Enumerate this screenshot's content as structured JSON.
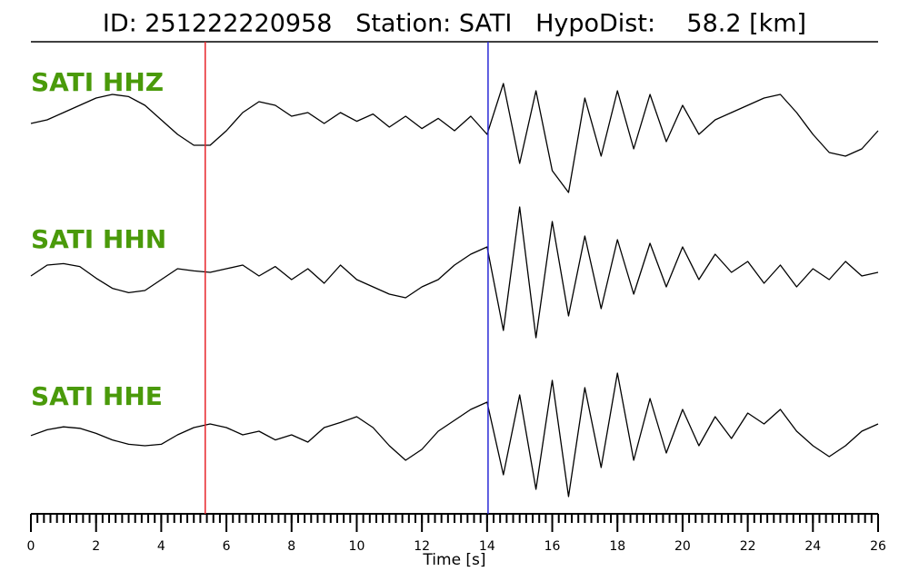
{
  "chart_data": {
    "type": "seismogram",
    "title": "ID: 251222220958   Station: SATI   HypoDist:    58.2 [km]",
    "xlabel": "Time [s]",
    "xlim": [
      0,
      26
    ],
    "xticks": [
      0,
      2,
      4,
      6,
      8,
      10,
      12,
      14,
      16,
      18,
      20,
      22,
      24,
      26
    ],
    "xminorticks": [
      0,
      0.2,
      0.4,
      0.6,
      0.8,
      1,
      1.2,
      1.4,
      1.6,
      1.8,
      2,
      2.2,
      2.4,
      2.6,
      2.8,
      3,
      3.2,
      3.4,
      3.6,
      3.8,
      4,
      4.2,
      4.4,
      4.6,
      4.8,
      5,
      5.2,
      5.4,
      5.6,
      5.8,
      6,
      6.2,
      6.4,
      6.6,
      6.8,
      7,
      7.2,
      7.4,
      7.6,
      7.8,
      8,
      8.2,
      8.4,
      8.6,
      8.8,
      9,
      9.2,
      9.4,
      9.6,
      9.8,
      10,
      10.2,
      10.4,
      10.6,
      10.8,
      11,
      11.2,
      11.4,
      11.6,
      11.8,
      12,
      12.2,
      12.4,
      12.6,
      12.8,
      13,
      13.2,
      13.4,
      13.6,
      13.8,
      14,
      14.2,
      14.4,
      14.6,
      14.8,
      15,
      15.2,
      15.4,
      15.6,
      15.8,
      16,
      16.2,
      16.4,
      16.6,
      16.8,
      17,
      17.2,
      17.4,
      17.6,
      17.8,
      18,
      18.2,
      18.4,
      18.6,
      18.8,
      19,
      19.2,
      19.4,
      19.6,
      19.8,
      20,
      20.2,
      20.4,
      20.6,
      20.8,
      21,
      21.2,
      21.4,
      21.6,
      21.8,
      22,
      22.2,
      22.4,
      22.6,
      22.8,
      23,
      23.2,
      23.4,
      23.6,
      23.8,
      24,
      24.2,
      24.4,
      24.6,
      24.8,
      25,
      25.2,
      25.4,
      25.6,
      25.8,
      26
    ],
    "picks": [
      {
        "value": 5.35,
        "color": "#e8242b"
      },
      {
        "value": 14.03,
        "color": "#2a2ad6"
      }
    ],
    "x": [
      0,
      0.5,
      1,
      1.5,
      2,
      2.5,
      3,
      3.5,
      4,
      4.5,
      5,
      5.5,
      6,
      6.5,
      7,
      7.5,
      8,
      8.5,
      9,
      9.5,
      10,
      10.5,
      11,
      11.5,
      12,
      12.5,
      13,
      13.5,
      14,
      14.5,
      15,
      15.5,
      16,
      16.5,
      17,
      17.5,
      18,
      18.5,
      19,
      19.5,
      20,
      20.5,
      21,
      21.5,
      22,
      22.5,
      23,
      23.5,
      24,
      24.5,
      25,
      25.5,
      26
    ],
    "series": [
      {
        "name": "SATI HHZ",
        "color": "#000000",
        "values": [
          0.05,
          0.1,
          0.2,
          0.3,
          0.4,
          0.45,
          0.42,
          0.3,
          0.1,
          -0.1,
          -0.25,
          -0.25,
          -0.05,
          0.2,
          0.35,
          0.3,
          0.15,
          0.2,
          0.05,
          0.2,
          0.08,
          0.18,
          0.0,
          0.15,
          -0.02,
          0.12,
          -0.05,
          0.15,
          -0.1,
          0.6,
          -0.5,
          0.5,
          -0.6,
          -0.9,
          0.4,
          -0.4,
          0.5,
          -0.3,
          0.45,
          -0.2,
          0.3,
          -0.1,
          0.1,
          0.2,
          0.3,
          0.4,
          0.45,
          0.2,
          -0.1,
          -0.35,
          -0.4,
          -0.3,
          -0.05
        ]
      },
      {
        "name": "SATI HHN",
        "color": "#000000",
        "values": [
          -0.05,
          0.1,
          0.12,
          0.08,
          -0.08,
          -0.22,
          -0.28,
          -0.25,
          -0.1,
          0.05,
          0.02,
          0.0,
          0.05,
          0.1,
          -0.05,
          0.08,
          -0.1,
          0.05,
          -0.15,
          0.1,
          -0.1,
          -0.2,
          -0.3,
          -0.35,
          -0.2,
          -0.1,
          0.1,
          0.25,
          0.35,
          -0.8,
          0.9,
          -0.9,
          0.7,
          -0.6,
          0.5,
          -0.5,
          0.45,
          -0.3,
          0.4,
          -0.2,
          0.35,
          -0.1,
          0.25,
          0.0,
          0.15,
          -0.15,
          0.1,
          -0.2,
          0.05,
          -0.1,
          0.15,
          -0.05,
          0.0
        ]
      },
      {
        "name": "SATI HHE",
        "color": "#000000",
        "values": [
          -0.06,
          0.02,
          0.06,
          0.04,
          -0.03,
          -0.12,
          -0.18,
          -0.2,
          -0.18,
          -0.05,
          0.05,
          0.1,
          0.05,
          -0.05,
          0.0,
          -0.12,
          -0.05,
          -0.15,
          0.05,
          0.12,
          0.2,
          0.05,
          -0.2,
          -0.4,
          -0.25,
          0.0,
          0.15,
          0.3,
          0.4,
          -0.6,
          0.5,
          -0.8,
          0.7,
          -0.9,
          0.6,
          -0.5,
          0.8,
          -0.4,
          0.45,
          -0.3,
          0.3,
          -0.2,
          0.2,
          -0.1,
          0.25,
          0.1,
          0.3,
          0.0,
          -0.2,
          -0.35,
          -0.2,
          0.0,
          0.1
        ]
      }
    ]
  }
}
